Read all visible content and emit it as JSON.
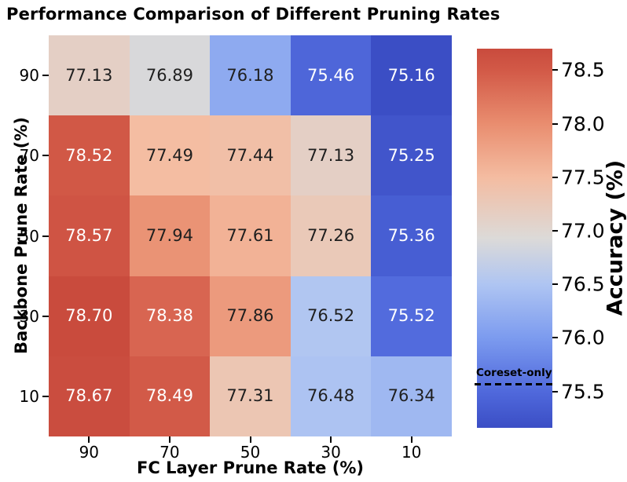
{
  "chart_data": {
    "type": "heatmap",
    "title": "Performance Comparison of Different Pruning Rates",
    "xlabel": "FC Layer Prune Rate (%)",
    "ylabel": "Backbone Prune Rate (%)",
    "colorbar_label": "Accuracy (%)",
    "x_ticklabels": [
      "90",
      "70",
      "50",
      "30",
      "10"
    ],
    "y_ticklabels": [
      "90",
      "70",
      "50",
      "30",
      "10"
    ],
    "cell_labels": [
      [
        "77.13",
        "76.89",
        "76.18",
        "75.46",
        "75.16"
      ],
      [
        "78.52",
        "77.49",
        "77.44",
        "77.13",
        "75.25"
      ],
      [
        "78.57",
        "77.94",
        "77.61",
        "77.26",
        "75.36"
      ],
      [
        "78.70",
        "78.38",
        "77.86",
        "76.52",
        "75.52"
      ],
      [
        "78.67",
        "78.49",
        "77.31",
        "76.48",
        "76.34"
      ]
    ],
    "values": [
      [
        77.13,
        76.89,
        76.18,
        75.46,
        75.16
      ],
      [
        78.52,
        77.49,
        77.44,
        77.13,
        75.25
      ],
      [
        78.57,
        77.94,
        77.61,
        77.26,
        75.36
      ],
      [
        78.7,
        78.38,
        77.86,
        76.52,
        75.52
      ],
      [
        78.67,
        78.49,
        77.31,
        76.48,
        76.34
      ]
    ],
    "vmin": 75.16,
    "vmax": 78.7,
    "colorbar_ticks": [
      "78.5",
      "78.0",
      "77.5",
      "77.0",
      "76.5",
      "76.0",
      "75.5"
    ],
    "annotation": {
      "label": "Coreset-only",
      "value": 75.57
    },
    "colormap_name": "coolwarm",
    "colormap_stops": [
      {
        "value": 75.16,
        "color": "#3B4EC5"
      },
      {
        "value": 75.5,
        "color": "#5069DC"
      },
      {
        "value": 76.0,
        "color": "#7C9BEF"
      },
      {
        "value": 76.5,
        "color": "#AFC5F2"
      },
      {
        "value": 76.93,
        "color": "#DCDAD8"
      },
      {
        "value": 77.5,
        "color": "#F4BCA1"
      },
      {
        "value": 78.0,
        "color": "#E98D6F"
      },
      {
        "value": 78.5,
        "color": "#D25947"
      },
      {
        "value": 78.7,
        "color": "#C94B3D"
      }
    ],
    "dark_text_color": "#1f1f1f",
    "light_text_color": "#ffffff",
    "grid": false,
    "legend_position": "right-colorbar"
  }
}
